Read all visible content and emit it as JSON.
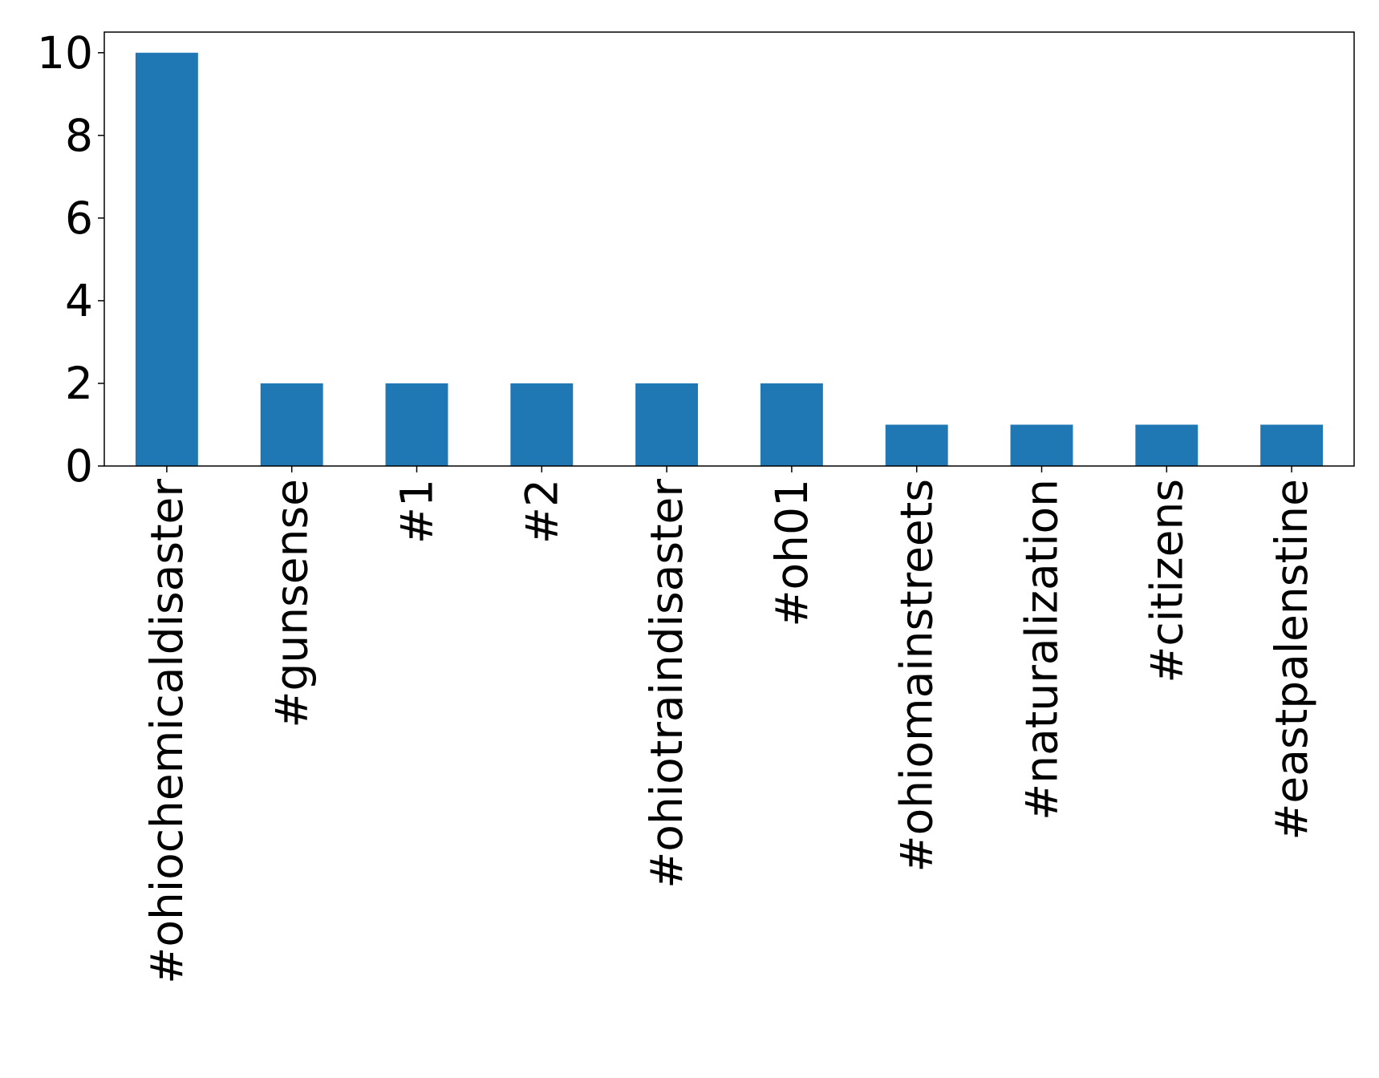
{
  "chart_data": {
    "type": "bar",
    "title": "",
    "xlabel": "",
    "ylabel": "",
    "categories": [
      "#ohiochemicaldisaster",
      "#gunsense",
      "#1",
      "#2",
      "#ohiotraindisaster",
      "#oh01",
      "#ohiomainstreets",
      "#naturalization",
      "#citizens",
      "#eastpalenstine"
    ],
    "values": [
      10,
      2,
      2,
      2,
      2,
      2,
      1,
      1,
      1,
      1
    ],
    "ylim": [
      0,
      10.5
    ],
    "yticks": [
      0,
      2,
      4,
      6,
      8,
      10
    ],
    "x_tick_rotation": "vertical",
    "grid": false,
    "legend": "none",
    "colors": {
      "bar": "#1f77b4",
      "axis": "#000000",
      "background": "#ffffff"
    }
  }
}
